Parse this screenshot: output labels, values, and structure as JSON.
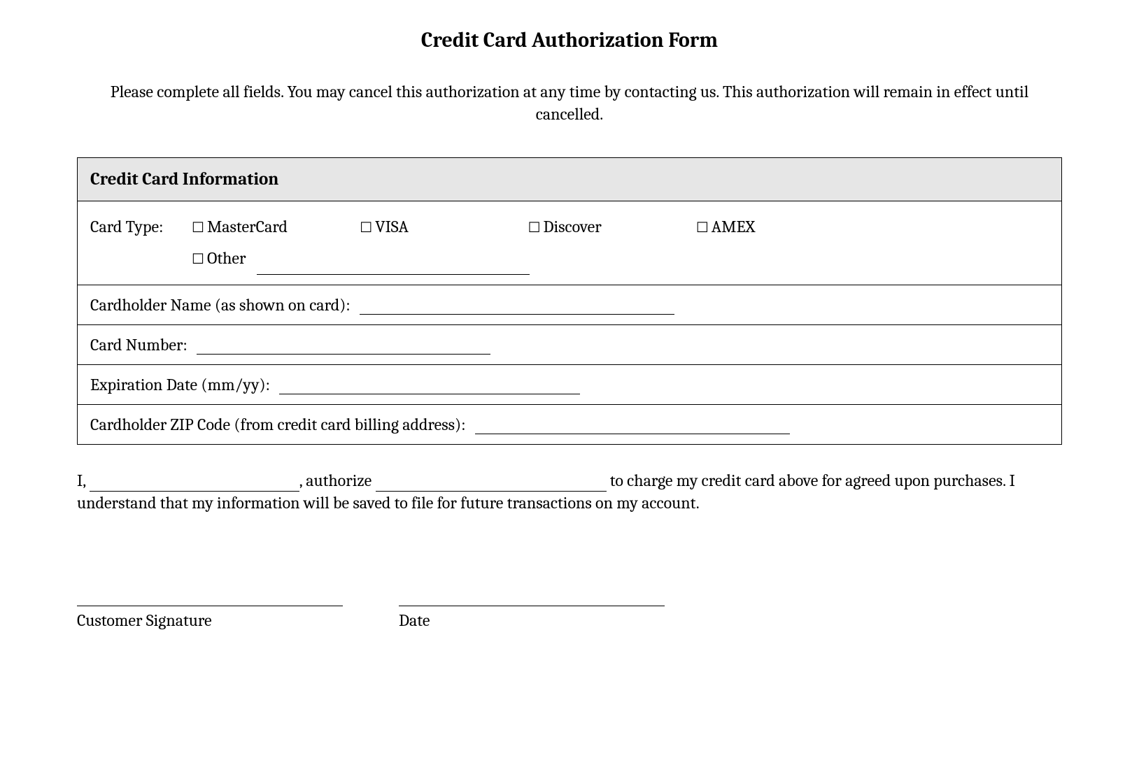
{
  "title": "Credit Card Authorization Form",
  "intro": "Please complete all fields. You may cancel this authorization at any time by contacting us. This authorization will remain in effect until cancelled.",
  "section_header": "Credit Card Information",
  "labels": {
    "card_type": "Card Type:",
    "cardholder_name": "Cardholder Name (as shown on card):",
    "card_number": "Card Number:",
    "expiration": "Expiration Date (mm/yy):",
    "zip": "Cardholder ZIP Code (from credit card billing address):"
  },
  "card_options": {
    "mastercard": "MasterCard",
    "visa": "VISA",
    "discover": "Discover",
    "amex": "AMEX",
    "other": "Other"
  },
  "auth_text": {
    "p1": "I,",
    "p2": ", authorize",
    "p3": "to charge my credit card above for agreed upon purchases. I understand that my information will be saved to file for future transactions on my account."
  },
  "signature": {
    "customer": "Customer Signature",
    "date": "Date"
  },
  "style": {
    "checkbox_glyph": "☐",
    "blank_widths": {
      "other": "390px",
      "name": "450px",
      "number": "420px",
      "expiration": "430px",
      "zip": "450px",
      "auth_name": "300px",
      "auth_merchant": "330px"
    },
    "opt_widths": {
      "mastercard": "235px",
      "visa": "235px",
      "discover": "235px",
      "amex": "160px"
    }
  }
}
